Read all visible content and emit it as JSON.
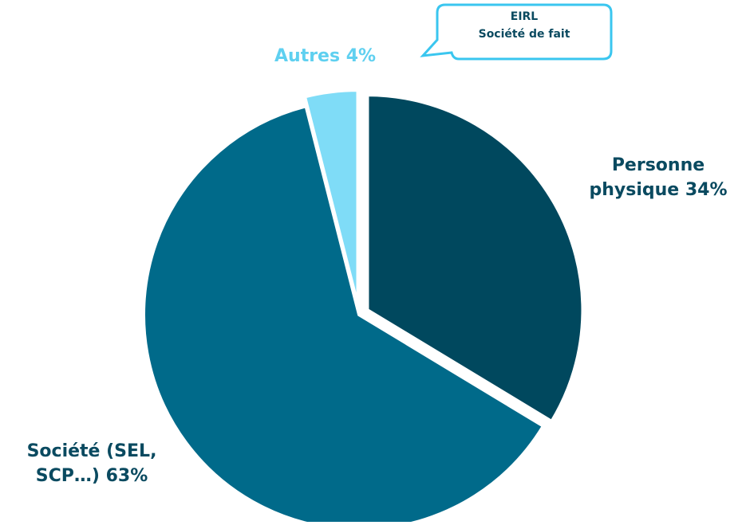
{
  "chart_data": {
    "type": "pie",
    "title": "",
    "slices": [
      {
        "label_lines": [
          "Personne",
          "physique 34%"
        ],
        "value": 34,
        "color": "#00485e",
        "exploded": true
      },
      {
        "label_lines": [
          "Société (SEL,",
          "SCP…) 63%"
        ],
        "value": 63,
        "color": "#006a8a",
        "exploded": false
      },
      {
        "label_lines": [
          "Autres 4%"
        ],
        "value": 4,
        "color": "#7fdcf7",
        "exploded": true
      }
    ],
    "callout": {
      "lines": [
        "EIRL",
        "Société de fait"
      ],
      "border_color": "#3ac6ef"
    }
  }
}
